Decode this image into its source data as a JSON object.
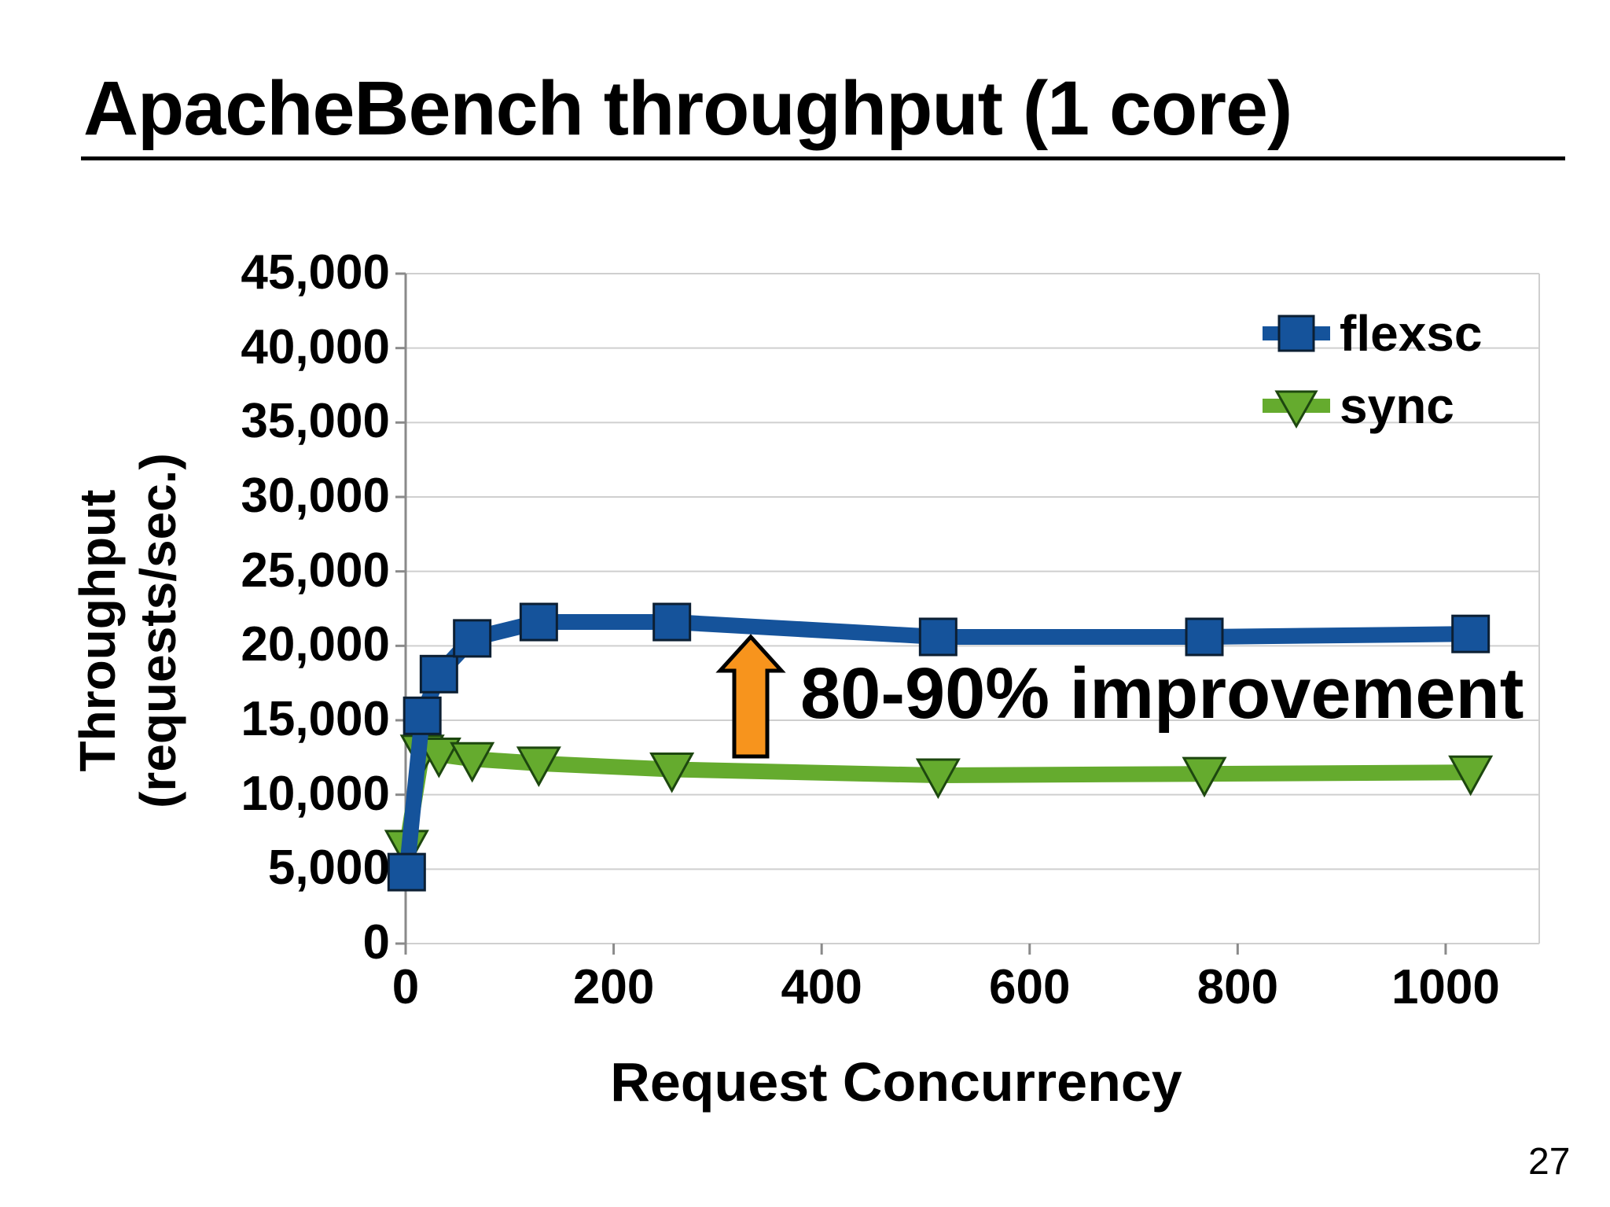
{
  "slide": {
    "title": "ApacheBench throughput (1 core)",
    "page_number": "27"
  },
  "chart_data": {
    "type": "line",
    "xlabel": "Request Concurrency",
    "ylabel_line1": "Throughput",
    "ylabel_line2": "(requests/sec.)",
    "xlim": [
      0,
      1090
    ],
    "ylim": [
      0,
      45000
    ],
    "y_tick_interval": 5000,
    "y_ticks": [
      0,
      5000,
      10000,
      15000,
      20000,
      25000,
      30000,
      35000,
      40000,
      45000
    ],
    "y_tick_labels": [
      "0",
      "5,000",
      "10,000",
      "15,000",
      "20,000",
      "25,000",
      "30,000",
      "35,000",
      "40,000",
      "45,000"
    ],
    "x_ticks": [
      0,
      200,
      400,
      600,
      800,
      1000
    ],
    "x_tick_labels": [
      "0",
      "200",
      "400",
      "600",
      "800",
      "1000"
    ],
    "grid": "horizontal-only",
    "legend_position": "top-right-inside",
    "series": [
      {
        "name": "flexsc",
        "color": "#15539b",
        "marker": "square",
        "x": [
          1,
          16,
          32,
          64,
          128,
          256,
          512,
          768,
          1024
        ],
        "values": [
          4800,
          15300,
          18100,
          20500,
          21600,
          21600,
          20600,
          20600,
          20800
        ]
      },
      {
        "name": "sync",
        "color": "#65ab2e",
        "marker": "triangle-down",
        "x": [
          1,
          16,
          32,
          64,
          128,
          256,
          512,
          768,
          1024
        ],
        "values": [
          6500,
          12900,
          12700,
          12400,
          12100,
          11700,
          11300,
          11400,
          11500
        ]
      }
    ],
    "annotation": {
      "text": "80-90% improvement",
      "arrow_color": "#f7941d"
    }
  }
}
